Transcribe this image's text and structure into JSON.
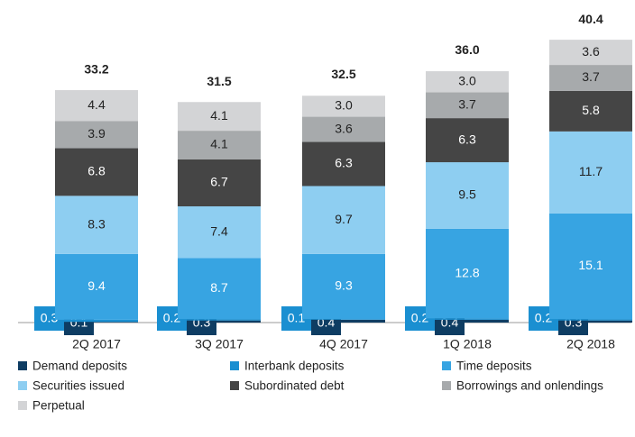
{
  "chart_data": {
    "type": "stacked_bar",
    "categories": [
      "2Q 2017",
      "3Q 2017",
      "4Q 2017",
      "1Q 2018",
      "2Q 2018"
    ],
    "series": [
      {
        "name": "Demand deposits",
        "color": "#0e3d63",
        "values": [
          0.1,
          0.3,
          0.4,
          0.4,
          0.3
        ]
      },
      {
        "name": "Interbank deposits",
        "color": "#1a8fd1",
        "values": [
          0.3,
          0.2,
          0.1,
          0.2,
          0.2
        ]
      },
      {
        "name": "Time deposits",
        "color": "#37a4e2",
        "values": [
          9.4,
          8.7,
          9.3,
          12.8,
          15.1
        ]
      },
      {
        "name": "Securities issued",
        "color": "#8ecef1",
        "values": [
          8.3,
          7.4,
          9.7,
          9.5,
          11.7
        ]
      },
      {
        "name": "Subordinated debt",
        "color": "#454545",
        "values": [
          6.8,
          6.7,
          6.3,
          6.3,
          5.8
        ]
      },
      {
        "name": "Borrowings and onlendings",
        "color": "#a7aaac",
        "values": [
          3.9,
          4.1,
          3.6,
          3.7,
          3.7
        ]
      },
      {
        "name": "Perpetual",
        "color": "#d3d4d6",
        "values": [
          4.4,
          4.1,
          3.0,
          3.0,
          3.6
        ],
        "value_labels": [
          "4.4",
          "4.1",
          "3.0",
          "3.0",
          "3.6"
        ]
      }
    ],
    "totals": {
      "values": [
        33.2,
        31.5,
        32.5,
        36.0,
        40.4
      ],
      "value_labels": [
        "33.2",
        "31.5",
        "32.5",
        "36.0",
        "40.4"
      ]
    }
  }
}
